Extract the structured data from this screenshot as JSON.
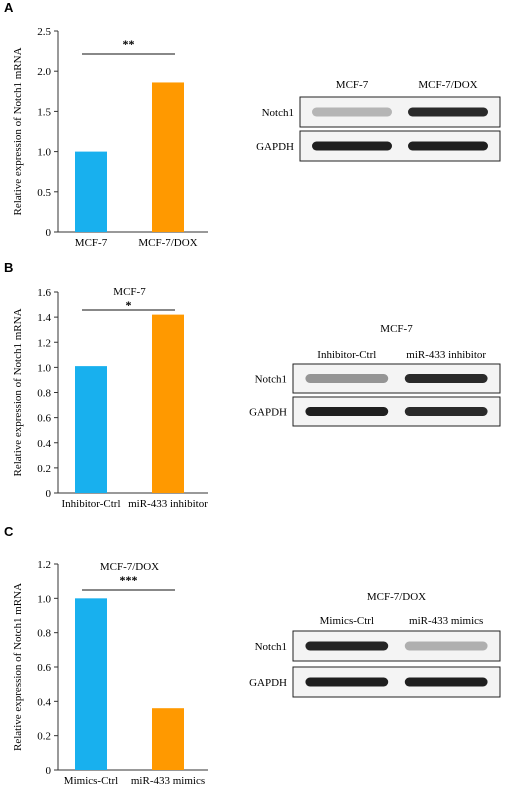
{
  "colors": {
    "bar_blue": "#18b0ee",
    "bar_orange": "#ff9900",
    "band_dark": "#1a1a1a"
  },
  "panels": [
    {
      "label": "A",
      "blot": {
        "title": "",
        "lane_labels": [
          "MCF-7",
          "MCF-7/DOX"
        ],
        "rows": [
          {
            "name": "Notch1",
            "band_intensity": [
              0.25,
              0.9
            ]
          },
          {
            "name": "GAPDH",
            "band_intensity": [
              0.95,
              0.95
            ]
          }
        ]
      }
    },
    {
      "label": "B",
      "blot": {
        "title": "MCF-7",
        "lane_labels": [
          "Inhibitor-Ctrl",
          "miR-433 inhibitor"
        ],
        "rows": [
          {
            "name": "Notch1",
            "band_intensity": [
              0.4,
              0.9
            ]
          },
          {
            "name": "GAPDH",
            "band_intensity": [
              0.95,
              0.9
            ]
          }
        ]
      }
    },
    {
      "label": "C",
      "blot": {
        "title": "MCF-7/DOX",
        "lane_labels": [
          "Mimics-Ctrl",
          "miR-433 mimics"
        ],
        "rows": [
          {
            "name": "Notch1",
            "band_intensity": [
              0.92,
              0.28
            ]
          },
          {
            "name": "GAPDH",
            "band_intensity": [
              0.95,
              0.95
            ]
          }
        ]
      }
    }
  ],
  "chart_data": [
    {
      "type": "bar",
      "title": "",
      "categories": [
        "MCF-7",
        "MCF-7/DOX"
      ],
      "values": [
        1.0,
        1.86
      ],
      "ylabel": "Relative expression of Notch1 mRNA",
      "ylim": [
        0,
        2.5
      ],
      "yticks": [
        "0",
        "0.5",
        "1.0",
        "1.5",
        "2.0",
        "2.5"
      ],
      "significance": "**",
      "grid": false
    },
    {
      "type": "bar",
      "title": "MCF-7",
      "categories": [
        "Inhibitor-Ctrl",
        "miR-433 inhibitor"
      ],
      "values": [
        1.01,
        1.42
      ],
      "ylabel": "Relative expression of Notch1 mRNA",
      "ylim": [
        0,
        1.6
      ],
      "yticks": [
        "0",
        "0.2",
        "0.4",
        "0.6",
        "0.8",
        "1.0",
        "1.2",
        "1.4",
        "1.6"
      ],
      "significance": "*",
      "grid": false
    },
    {
      "type": "bar",
      "title": "MCF-7/DOX",
      "categories": [
        "Mimics-Ctrl",
        "miR-433 mimics"
      ],
      "values": [
        1.0,
        0.36
      ],
      "ylabel": "Relative expression of Notch1 mRNA",
      "ylim": [
        0,
        1.2
      ],
      "yticks": [
        "0",
        "0.2",
        "0.4",
        "0.6",
        "0.8",
        "1.0",
        "1.2"
      ],
      "significance": "***",
      "grid": false
    }
  ]
}
